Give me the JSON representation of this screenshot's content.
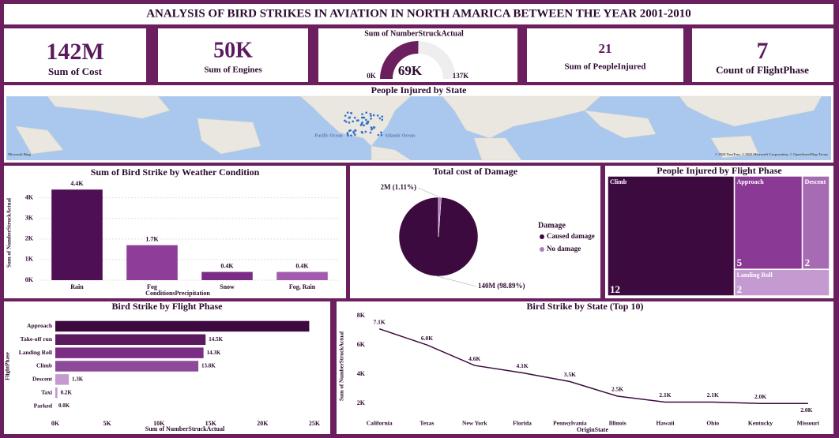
{
  "header": {
    "title": "ANALYSIS OF BIRD STRIKES IN AVIATION IN NORTH AMARICA BETWEEN THE YEAR 2001-2010"
  },
  "kpis": [
    {
      "value": "142M",
      "label": "Sum of Cost"
    },
    {
      "value": "50K",
      "label": "Sum of Engines"
    },
    {
      "value": "21",
      "label": "Sum of PeopleInjured"
    },
    {
      "value": "7",
      "label": "Count of FlightPhase"
    }
  ],
  "map": {
    "title": "People Injured by State",
    "labels": [
      "Pacific Ocean",
      "Atlantic Ocean"
    ],
    "attribution": "© 2024 TomTom, © 2025 Microsoft Corporation, © OpenStreetMap  Terms",
    "logo": "Microsoft Bing"
  },
  "chart_data": [
    {
      "type": "gauge",
      "title": "Sum of NumberStruckActual",
      "values": [
        69000
      ],
      "value_labels": [
        "69K"
      ],
      "color": "#6b1f5e",
      "ylim": [
        0,
        137000
      ],
      "yticks": [
        {
          "value": 0,
          "label": "0K"
        },
        {
          "value": 137000,
          "label": "137K"
        }
      ]
    },
    {
      "type": "bar",
      "title": "Sum of Bird Strike by Weather Condition",
      "x_label": "ConditionsPrecipitation",
      "y_label": "Sum of NumberStruckActual",
      "categories": [
        "Rain",
        "Fog",
        "Snow",
        "Fog, Rain"
      ],
      "values": [
        4400,
        1700,
        400,
        400
      ],
      "value_labels": [
        "4.4K",
        "1.7K",
        "0.4K",
        "0.4K"
      ],
      "colors": [
        "#4f0f55",
        "#8e3d99",
        "#7b2d86",
        "#a35bb0"
      ],
      "ylim": [
        0,
        4600
      ],
      "yticks": [
        {
          "value": 0,
          "label": "0K"
        },
        {
          "value": 1000,
          "label": "1K"
        },
        {
          "value": 2000,
          "label": "2K"
        },
        {
          "value": 3000,
          "label": "3K"
        },
        {
          "value": 4000,
          "label": "4K"
        }
      ],
      "grid": true
    },
    {
      "type": "pie",
      "title": "Total cost of Damage",
      "legend_title": "Damage",
      "categories": [
        "Caused damage",
        "No damage"
      ],
      "values": [
        98.89,
        1.11
      ],
      "value_labels": [
        "140M (98.89%)",
        "2M (1.11%)"
      ],
      "colors": [
        "#3d0a40",
        "#b07cc0"
      ]
    },
    {
      "type": "treemap",
      "title": "People Injured by Flight Phase",
      "categories": [
        "Climb",
        "Approach",
        "Descent",
        "Landing Roll"
      ],
      "values": [
        12,
        5,
        2,
        2
      ],
      "colors": [
        "#3d0a40",
        "#8a3a94",
        "#a66bb3",
        "#c49ad0"
      ]
    },
    {
      "type": "hbar",
      "title": "Bird Strike by Flight Phase",
      "x_label": "Sum of NumberStruckActual",
      "y_label": "FlightPhase",
      "categories": [
        "Approach",
        "Take-off run",
        "Landing Roll",
        "Climb",
        "Descent",
        "Taxi",
        "Parked"
      ],
      "values": [
        24500,
        14500,
        14300,
        13800,
        1300,
        200,
        0
      ],
      "value_labels": [
        null,
        "14.5K",
        "14.3K",
        "13.8K",
        "1.3K",
        "0.2K",
        "0.0K"
      ],
      "colors": [
        "#3d0a40",
        "#5b1a5e",
        "#7b2d86",
        "#8e4a9a",
        "#c49ad0",
        "#c49ad0",
        "#c49ad0"
      ],
      "xlim": [
        0,
        25000
      ],
      "xticks": [
        {
          "value": 0,
          "label": "0K"
        },
        {
          "value": 5000,
          "label": "5K"
        },
        {
          "value": 10000,
          "label": "10K"
        },
        {
          "value": 15000,
          "label": "15K"
        },
        {
          "value": 20000,
          "label": "20K"
        },
        {
          "value": 25000,
          "label": "25K"
        }
      ]
    },
    {
      "type": "line",
      "title": "Bird Strike by State (Top 10)",
      "x_label": "OriginState",
      "y_label": "Sum of NumberStruckActual",
      "categories": [
        "California",
        "Texas",
        "New York",
        "Florida",
        "Pennsylvania",
        "Illinois",
        "Hawaii",
        "Ohio",
        "Kentucky",
        "Missouri"
      ],
      "values": [
        7100,
        6000,
        4600,
        4100,
        3500,
        2500,
        2100,
        2100,
        2000,
        2000
      ],
      "value_labels": [
        "7.1K",
        "6.0K",
        "4.6K",
        "4.1K",
        "3.5K",
        "2.5K",
        "2.1K",
        "2.1K",
        "2.0K",
        "2.0K"
      ],
      "color": "#3d0a40",
      "ylim": [
        1100,
        8000
      ],
      "yticks": [
        {
          "value": 2000,
          "label": "2K"
        },
        {
          "value": 4000,
          "label": "4K"
        },
        {
          "value": 6000,
          "label": "6K"
        },
        {
          "value": 8000,
          "label": "8K"
        }
      ]
    }
  ]
}
